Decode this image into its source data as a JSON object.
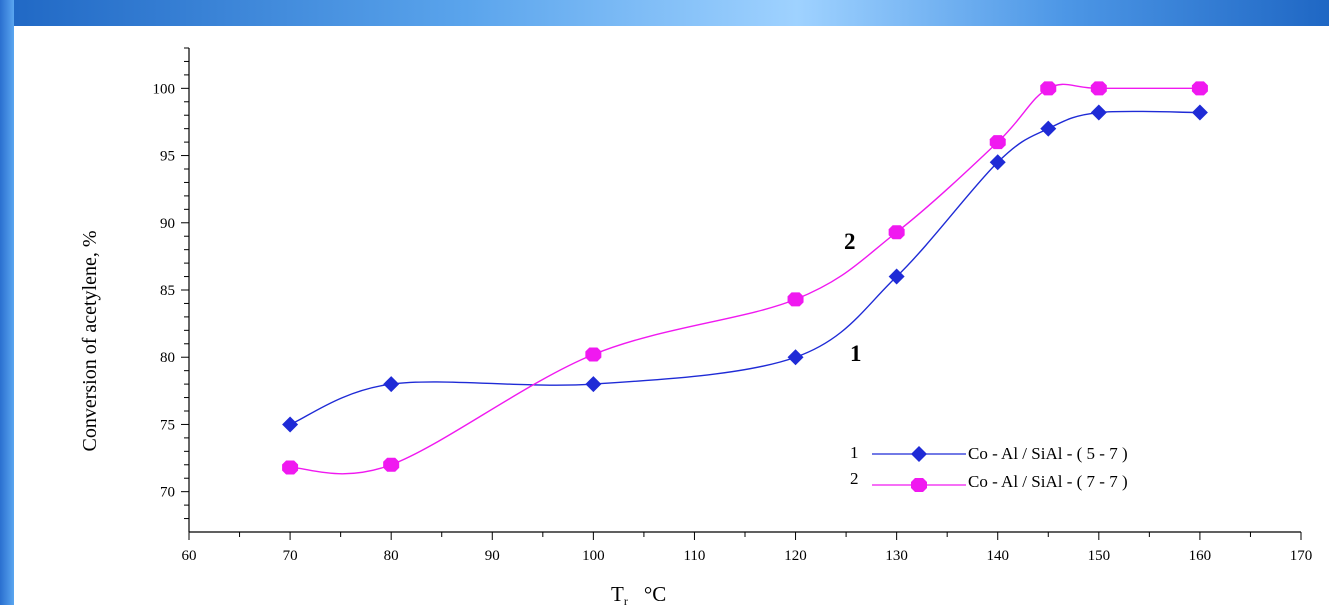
{
  "chart_data": {
    "type": "line",
    "xlabel": "T",
    "xlabel_sub": "r",
    "xlabel_unit": "°C",
    "ylabel": "Conversion of acetylene, %",
    "xlim": [
      60,
      170
    ],
    "ylim": [
      67,
      103
    ],
    "x_ticks": [
      60,
      70,
      80,
      90,
      100,
      110,
      120,
      130,
      140,
      150,
      160,
      170
    ],
    "x_tick_labels": [
      "60",
      "70",
      "80",
      "90",
      "100",
      "110",
      "120",
      "130",
      "140",
      "150",
      "160",
      "170"
    ],
    "y_ticks": [
      70,
      75,
      80,
      85,
      90,
      95,
      100
    ],
    "y_tick_labels": [
      "70",
      "75",
      "80",
      "85",
      "90",
      "95",
      "100"
    ],
    "grid": false,
    "legend_position": "bottom-right",
    "series": [
      {
        "name": "Co - Al / SiAl - ( 5 - 7 )",
        "legend_number": "1",
        "curve_label": "1",
        "color": "#1f2bd6",
        "marker": "diamond",
        "x": [
          70,
          80,
          100,
          120,
          130,
          140,
          145,
          150,
          160
        ],
        "y": [
          75,
          78,
          78,
          80,
          86,
          94.5,
          97,
          98.2,
          98.2
        ]
      },
      {
        "name": "Co - Al / SiAl - ( 7 - 7 )",
        "legend_number": "2",
        "curve_label": "2",
        "color": "#f019f0",
        "marker": "hexagon",
        "x": [
          70,
          80,
          100,
          120,
          130,
          140,
          145,
          150,
          160
        ],
        "y": [
          71.8,
          72,
          80.2,
          84.3,
          89.3,
          96,
          100,
          100,
          100
        ]
      }
    ]
  }
}
